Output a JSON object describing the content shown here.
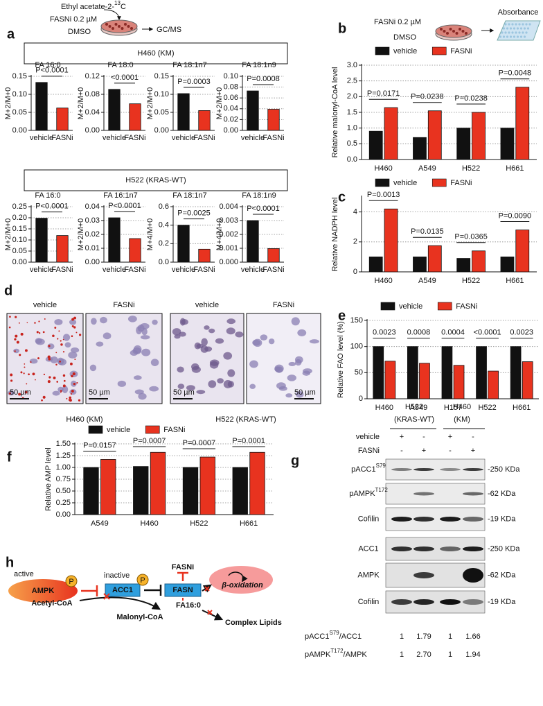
{
  "panel_labels": [
    "a",
    "b",
    "c",
    "d",
    "e",
    "f",
    "g",
    "h"
  ],
  "panel_a": {
    "schematic": {
      "tracer": {
        "main": "Ethyl acetate-2-",
        "sup": "13",
        "end": "C"
      },
      "treatment": "FASNi 0.2 µM",
      "control": "DMSO",
      "readout": "GC/MS"
    },
    "groups": [
      "H460 (KM)",
      "H522 (KRAS-WT)"
    ]
  },
  "panel_b": {
    "schematic": {
      "treatment": "FASNi 0.2 µM",
      "control": "DMSO",
      "readout": "Absorbance"
    }
  },
  "panel_d": {
    "conditions": [
      "vehicle",
      "FASNi",
      "vehicle",
      "FASNi"
    ],
    "scale_bars": [
      "50 µm",
      "50 µm",
      "50 µm",
      "50 µm"
    ],
    "groups": [
      "H460 (KM)",
      "H522 (KRAS-WT)"
    ]
  },
  "panel_g": {
    "cell_lines": [
      {
        "name": "H522",
        "subtype": "(KRAS-WT)"
      },
      {
        "name": "H460",
        "subtype": "(KM)"
      }
    ],
    "treatments": [
      {
        "name": "vehicle",
        "lanes": [
          "+",
          "-",
          "+",
          "-"
        ]
      },
      {
        "name": "FASNi",
        "lanes": [
          "-",
          "+",
          "-",
          "+"
        ]
      }
    ],
    "blots": [
      {
        "main": "pACC1",
        "sup": "S79",
        "size": "-250 KDa"
      },
      {
        "main": "pAMPK",
        "sup": "T172",
        "size": "-62 KDa"
      },
      {
        "main": "Cofilin",
        "size": "-19 KDa"
      },
      {
        "main": "ACC1",
        "size": "-250 KDa"
      },
      {
        "main": "AMPK",
        "size": "-62 KDa"
      },
      {
        "main": "Cofilin",
        "size": "-19 KDa"
      }
    ],
    "ratios": [
      {
        "main": "pACC1",
        "sup": "S79",
        "end": "/ACC1",
        "values": [
          "1",
          "1.79",
          "1",
          "1.66"
        ]
      },
      {
        "main": "pAMPK",
        "sup": "T172",
        "end": "/AMPK",
        "values": [
          "1",
          "2.70",
          "1",
          "1.94"
        ]
      }
    ]
  },
  "panel_h": {
    "ampk_state": "active",
    "ampk": "AMPK",
    "acc1_state": "inactive",
    "acc1": "ACC1",
    "phospho": "P",
    "inhibitor": "FASNi",
    "fasn": "FASN",
    "fate_1": "β-oxidation",
    "fate_2": "Complex Lipids",
    "substrate": "Acetyl-CoA",
    "product": "Malonyl-CoA",
    "fatty_acid": "FA16:0"
  },
  "chart_data": [
    {
      "type": "bar",
      "title": "FA 16:0",
      "y_label": "M+2/M+0",
      "categories": [
        "vehicle",
        "FASNi"
      ],
      "values": [
        0.133,
        0.062
      ],
      "bar_colors": [
        "#111111",
        "#e8331f"
      ],
      "pvalues": [
        "P<0.0001"
      ],
      "ylim": [
        0,
        0.15
      ],
      "yticks": [
        {
          "value": 0,
          "label": "0.00"
        },
        0.05,
        {
          "value": 0.1,
          "label": "0.10"
        },
        0.15
      ],
      "grid": true
    },
    {
      "type": "bar",
      "title": "FA 18:0",
      "y_label": "M+2/M+0",
      "categories": [
        "vehicle",
        "FASNi"
      ],
      "values": [
        0.091,
        0.059
      ],
      "bar_colors": [
        "#111111",
        "#e8331f"
      ],
      "pvalues": [
        "<0.0001"
      ],
      "ylim": [
        0,
        0.12
      ],
      "yticks": [
        {
          "value": 0,
          "label": "0.00"
        },
        0.04,
        0.08,
        0.12
      ],
      "grid": true
    },
    {
      "type": "bar",
      "title": "FA 18:1n7",
      "y_label": "M+2/M+0",
      "categories": [
        "vehicle",
        "FASNi"
      ],
      "values": [
        0.102,
        0.055
      ],
      "bar_colors": [
        "#111111",
        "#e8331f"
      ],
      "pvalues": [
        "P=0.0003"
      ],
      "ylim": [
        0,
        0.15
      ],
      "yticks": [
        {
          "value": 0,
          "label": "0.00"
        },
        0.05,
        {
          "value": 0.1,
          "label": "0.10"
        },
        0.15
      ],
      "grid": true
    },
    {
      "type": "bar",
      "title": "FA 18:1n9",
      "y_label": "M+2/M+0",
      "categories": [
        "vehicle",
        "FASNi"
      ],
      "values": [
        0.073,
        0.039
      ],
      "bar_colors": [
        "#111111",
        "#e8331f"
      ],
      "pvalues": [
        "P=0.0008"
      ],
      "ylim": [
        0,
        0.1
      ],
      "yticks": [
        {
          "value": 0,
          "label": "0.00"
        },
        0.02,
        0.04,
        0.06,
        0.08,
        {
          "value": 0.1,
          "label": "0.10"
        }
      ],
      "grid": true
    },
    {
      "type": "bar",
      "title": "FA 16:0",
      "y_label": "M+2/M+0",
      "categories": [
        "vehicle",
        "FASNi"
      ],
      "values": [
        0.198,
        0.12
      ],
      "bar_colors": [
        "#111111",
        "#e8331f"
      ],
      "pvalues": [
        "P<0.0001"
      ],
      "ylim": [
        0,
        0.25
      ],
      "yticks": [
        {
          "value": 0,
          "label": "0.00"
        },
        0.05,
        {
          "value": 0.1,
          "label": "0.10"
        },
        0.15,
        {
          "value": 0.2,
          "label": "0.20"
        },
        0.25
      ],
      "grid": true
    },
    {
      "type": "bar",
      "title": "FA 16:1n7",
      "y_label": "M+2/M+0",
      "categories": [
        "vehicle",
        "FASNi"
      ],
      "values": [
        0.032,
        0.017
      ],
      "bar_colors": [
        "#111111",
        "#e8331f"
      ],
      "pvalues": [
        "P<0.0001"
      ],
      "ylim": [
        0,
        0.04
      ],
      "yticks": [
        {
          "value": 0,
          "label": "0.00"
        },
        0.01,
        0.02,
        0.03,
        0.04
      ],
      "grid": true
    },
    {
      "type": "bar",
      "title": "FA 18:1n7",
      "y_label": "M+4/M+0",
      "categories": [
        "vehicle",
        "FASNi"
      ],
      "values": [
        0.4,
        0.14
      ],
      "bar_colors": [
        "#111111",
        "#e8331f"
      ],
      "pvalues": [
        "P=0.0025"
      ],
      "ylim": [
        0,
        0.6
      ],
      "yticks": [
        {
          "value": 0,
          "label": "0.0"
        },
        0.2,
        0.4,
        0.6
      ],
      "grid": true
    },
    {
      "type": "bar",
      "title": "FA 18:1n9",
      "y_label": "M+4/M+0",
      "categories": [
        "vehicle",
        "FASNi"
      ],
      "values": [
        0.003,
        0.00098
      ],
      "bar_colors": [
        "#111111",
        "#e8331f"
      ],
      "pvalues": [
        "P<0.0001"
      ],
      "ylim": [
        0,
        0.004
      ],
      "yticks": [
        {
          "value": 0,
          "label": "0.000"
        },
        0.001,
        0.002,
        0.003,
        0.004
      ],
      "grid": true
    },
    {
      "type": "bar",
      "y_label": "Relative malonyl-CoA level",
      "categories": [
        "H460",
        "A549",
        "H522",
        "H661"
      ],
      "series": [
        {
          "name": "vehicle",
          "color": "#111111",
          "values": [
            0.9,
            0.7,
            1.0,
            1.0
          ]
        },
        {
          "name": "FASNi",
          "color": "#e8331f",
          "values": [
            1.65,
            1.55,
            1.5,
            2.3
          ]
        }
      ],
      "pvalues": [
        "P=0.0171",
        "P=0.0238",
        "P=0.0238",
        "P=0.0048"
      ],
      "ylim": [
        0,
        3
      ],
      "yticks": [
        {
          "value": 0,
          "label": "0.0"
        },
        0.5,
        {
          "value": 1,
          "label": "1.0"
        },
        1.5,
        {
          "value": 2,
          "label": "2.0"
        },
        2.5,
        {
          "value": 3,
          "label": "3.0"
        }
      ],
      "grid": true,
      "legend": "top"
    },
    {
      "type": "bar",
      "y_label": "Relative NADPH level",
      "categories": [
        "H460",
        "A549",
        "H522",
        "H661"
      ],
      "series": [
        {
          "name": "vehicle",
          "color": "#111111",
          "values": [
            1.0,
            1.0,
            0.9,
            1.0
          ]
        },
        {
          "name": "FASNi",
          "color": "#e8331f",
          "values": [
            4.2,
            1.75,
            1.4,
            2.8
          ]
        }
      ],
      "pvalues": [
        "P=0.0013",
        "P=0.0135",
        "P=0.0365",
        "P=0.0090"
      ],
      "ylim": [
        0,
        5
      ],
      "yticks": [
        0,
        2,
        4
      ],
      "grid": true,
      "legend": "top"
    },
    {
      "type": "bar",
      "y_label": "Relative FAO level (%)",
      "categories": [
        "H460",
        "A549",
        "H157",
        "H522",
        "H661"
      ],
      "series": [
        {
          "name": "vehicle",
          "color": "#111111",
          "values": [
            100,
            100,
            100,
            100,
            100
          ]
        },
        {
          "name": "FASNi",
          "color": "#e8331f",
          "values": [
            72,
            68,
            64,
            53,
            71
          ]
        }
      ],
      "pvalues": [
        "0.0023",
        "0.0008",
        "0.0004",
        "<0.0001",
        "0.0023"
      ],
      "ylim": [
        0,
        150
      ],
      "yticks": [
        0,
        50,
        100,
        150
      ],
      "grid": true,
      "legend": "top"
    },
    {
      "type": "bar",
      "y_label": "Relative AMP level",
      "categories": [
        "A549",
        "H460",
        "H522",
        "H661"
      ],
      "series": [
        {
          "name": "vehicle",
          "color": "#111111",
          "values": [
            1.0,
            1.02,
            1.0,
            1.0
          ]
        },
        {
          "name": "FASNi",
          "color": "#e8331f",
          "values": [
            1.17,
            1.32,
            1.22,
            1.32
          ]
        }
      ],
      "pvalues": [
        "P=0.0157",
        "P=0.0007",
        "P=0.0007",
        "P=0.0001"
      ],
      "ylim": [
        0,
        1.5
      ],
      "yticks": [
        {
          "value": 0,
          "label": "0.00"
        },
        0.25,
        {
          "value": 0.5,
          "label": "0.50"
        },
        0.75,
        {
          "value": 1,
          "label": "1.00"
        },
        1.25,
        {
          "value": 1.5,
          "label": "1.50"
        }
      ],
      "grid": true,
      "legend": "top"
    }
  ]
}
